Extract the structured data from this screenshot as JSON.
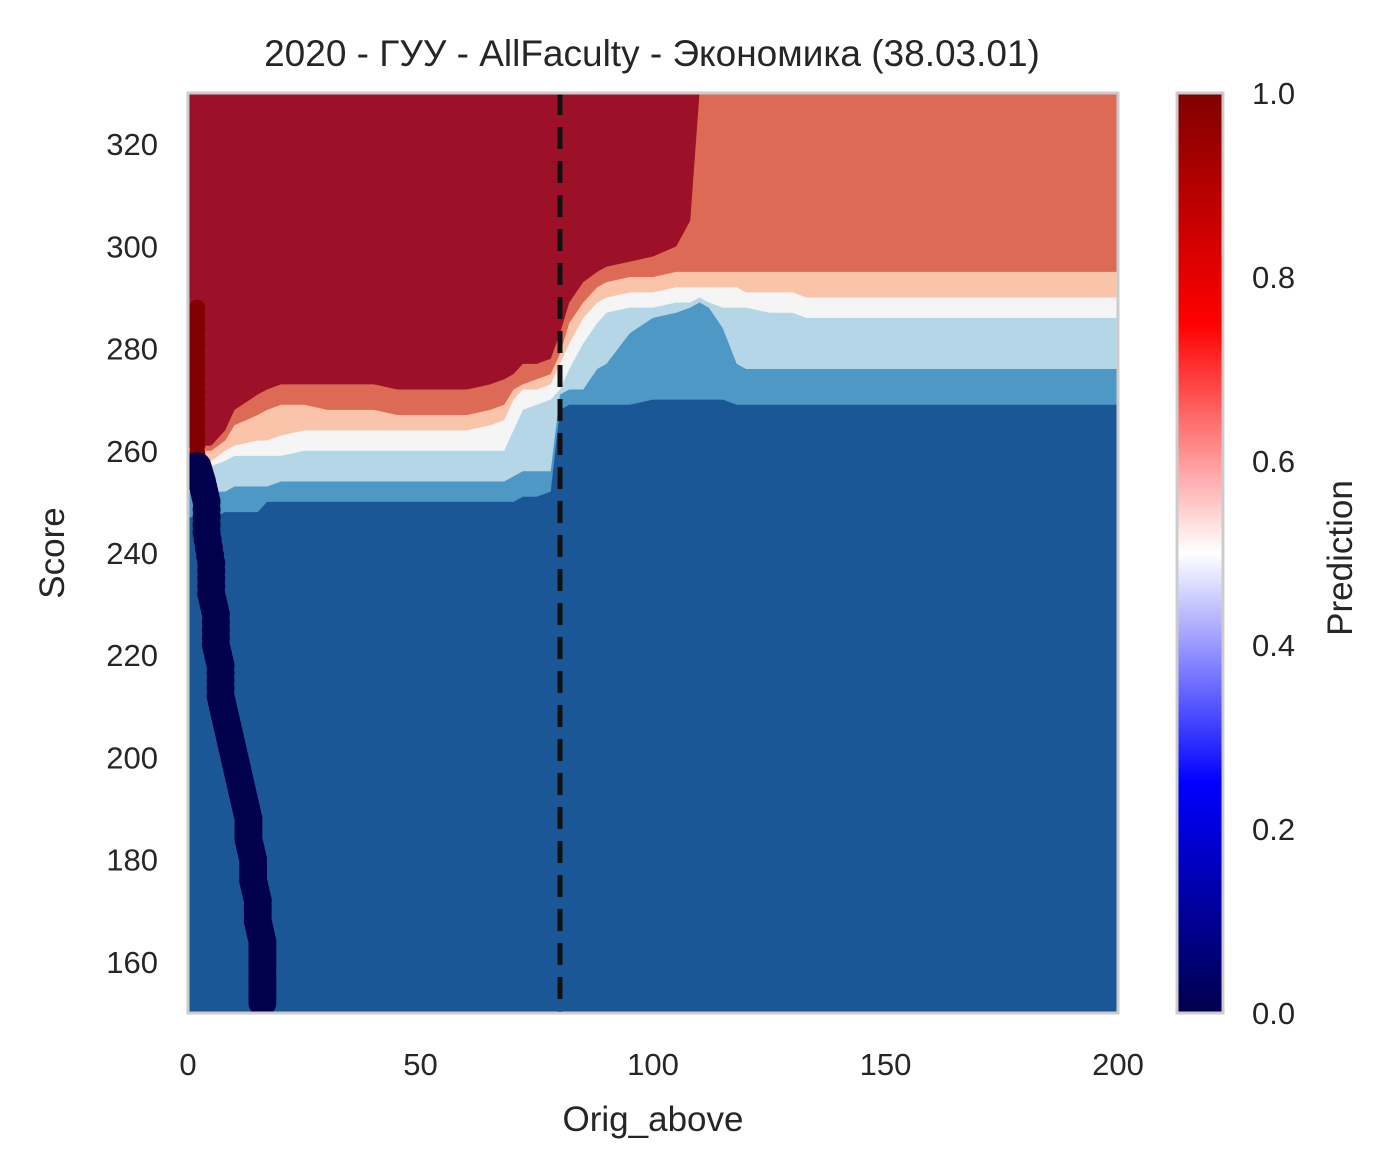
{
  "chart_data": {
    "type": "heatmap",
    "title": "2020 - ГУУ - AllFaculty - Экономика (38.03.01)",
    "xlabel": "Orig_above",
    "ylabel": "Score",
    "xlim": [
      0,
      200
    ],
    "ylim": [
      150,
      330
    ],
    "x_ticks": [
      0,
      50,
      100,
      150,
      200
    ],
    "y_ticks": [
      160,
      180,
      200,
      220,
      240,
      260,
      280,
      300,
      320
    ],
    "grid": false,
    "colorbar": {
      "label": "Prediction",
      "range": [
        0,
        1
      ],
      "ticks": [
        0.0,
        0.2,
        0.4,
        0.6,
        0.8,
        1.0
      ],
      "tick_labels": [
        "0.0",
        "0.2",
        "0.4",
        "0.6",
        "0.8",
        "1.0"
      ],
      "colormap": [
        "#00004c",
        "#0000ff",
        "#ffffff",
        "#ff0000",
        "#800000"
      ]
    },
    "level_colors": {
      "0.0-0.2": "#1b5796",
      "0.2-0.3": "#4d98c5",
      "0.3-0.4": "#b4d6e7",
      "0.4-0.6": "#f5f5f5",
      "0.6-0.7": "#f9c4a9",
      "0.7-0.8": "#dd6a55",
      "0.8-1.0": "#9c1128"
    },
    "contour_boundaries": {
      "x": [
        0,
        2,
        3,
        5,
        8,
        10,
        15,
        17,
        20,
        25,
        30,
        35,
        40,
        45,
        50,
        55,
        60,
        65,
        68,
        70,
        72,
        75,
        78,
        80,
        82,
        85,
        88,
        90,
        95,
        100,
        105,
        108,
        110,
        112,
        115,
        118,
        120,
        125,
        130,
        133,
        135,
        140,
        150,
        160,
        170,
        180,
        190,
        200
      ],
      "b_0.2": [
        247,
        247,
        247,
        247,
        248,
        248,
        248,
        250,
        250,
        250,
        250,
        250,
        250,
        250,
        250,
        250,
        250,
        250,
        250,
        250,
        251,
        251,
        252,
        268,
        269,
        269,
        269,
        269,
        269,
        270,
        270,
        270,
        270,
        270,
        270,
        269,
        269,
        269,
        269,
        269,
        269,
        269,
        269,
        269,
        269,
        269,
        269,
        269
      ],
      "b_0.3": [
        252,
        252,
        252,
        252,
        252,
        253,
        253,
        253,
        254,
        254,
        254,
        254,
        254,
        254,
        254,
        254,
        254,
        254,
        254,
        255,
        256,
        256,
        256,
        271,
        272,
        272,
        276,
        277,
        283,
        286,
        287,
        288,
        289,
        288,
        284,
        277,
        276,
        276,
        276,
        276,
        276,
        276,
        276,
        276,
        276,
        276,
        276,
        276
      ],
      "b_0.4": [
        257,
        257,
        257,
        257,
        258,
        259,
        259,
        259,
        259,
        260,
        260,
        260,
        260,
        260,
        260,
        260,
        260,
        260,
        260,
        264,
        268,
        269,
        270,
        272,
        276,
        281,
        285,
        287,
        288,
        288,
        289,
        289,
        290,
        289,
        288,
        288,
        288,
        287,
        287,
        286,
        286,
        286,
        286,
        286,
        286,
        286,
        286,
        286
      ],
      "b_0.6": [
        258,
        258,
        258,
        258,
        260,
        261,
        262,
        262,
        263,
        264,
        264,
        264,
        264,
        264,
        264,
        264,
        264,
        265,
        266,
        270,
        272,
        272,
        273,
        277,
        281,
        286,
        289,
        290,
        291,
        291,
        292,
        292,
        292,
        292,
        292,
        292,
        291,
        291,
        291,
        290,
        290,
        290,
        290,
        290,
        290,
        290,
        290,
        290
      ],
      "b_0.7": [
        260,
        260,
        260,
        260,
        262,
        265,
        267,
        268,
        269,
        269,
        268,
        268,
        268,
        267,
        267,
        267,
        267,
        268,
        269,
        272,
        273,
        274,
        275,
        279,
        285,
        289,
        292,
        293,
        294,
        294,
        295,
        295,
        295,
        295,
        295,
        295,
        295,
        295,
        295,
        295,
        295,
        295,
        295,
        295,
        295,
        295,
        295,
        295
      ],
      "b_0.8": [
        261,
        261,
        261,
        261,
        264,
        268,
        271,
        272,
        273,
        273,
        273,
        273,
        273,
        272,
        272,
        272,
        272,
        273,
        274,
        275,
        277,
        277,
        278,
        283,
        289,
        293,
        295,
        296,
        297,
        298,
        300,
        305,
        330,
        330,
        330,
        330,
        330,
        330,
        330,
        330,
        330,
        330,
        330,
        330,
        330,
        330,
        330,
        330
      ]
    },
    "cutoff_line": {
      "x": 80,
      "style": "dashed"
    },
    "points": {
      "value_near_1": {
        "x": 2,
        "y_range": [
          258,
          289
        ]
      },
      "value_near_0": [
        {
          "x": 2,
          "y": 257
        },
        {
          "x": 3,
          "y": 254
        },
        {
          "x": 4,
          "y": 250
        },
        {
          "x": 4,
          "y": 244
        },
        {
          "x": 5,
          "y": 238
        },
        {
          "x": 5,
          "y": 232
        },
        {
          "x": 6,
          "y": 228
        },
        {
          "x": 6,
          "y": 222
        },
        {
          "x": 7,
          "y": 218
        },
        {
          "x": 7,
          "y": 212
        },
        {
          "x": 8,
          "y": 208
        },
        {
          "x": 9,
          "y": 204
        },
        {
          "x": 10,
          "y": 200
        },
        {
          "x": 11,
          "y": 196
        },
        {
          "x": 12,
          "y": 192
        },
        {
          "x": 13,
          "y": 188
        },
        {
          "x": 13,
          "y": 184
        },
        {
          "x": 14,
          "y": 180
        },
        {
          "x": 14,
          "y": 176
        },
        {
          "x": 15,
          "y": 172
        },
        {
          "x": 15,
          "y": 168
        },
        {
          "x": 16,
          "y": 164
        },
        {
          "x": 16,
          "y": 160
        },
        {
          "x": 16,
          "y": 156
        },
        {
          "x": 16,
          "y": 152
        }
      ]
    }
  }
}
